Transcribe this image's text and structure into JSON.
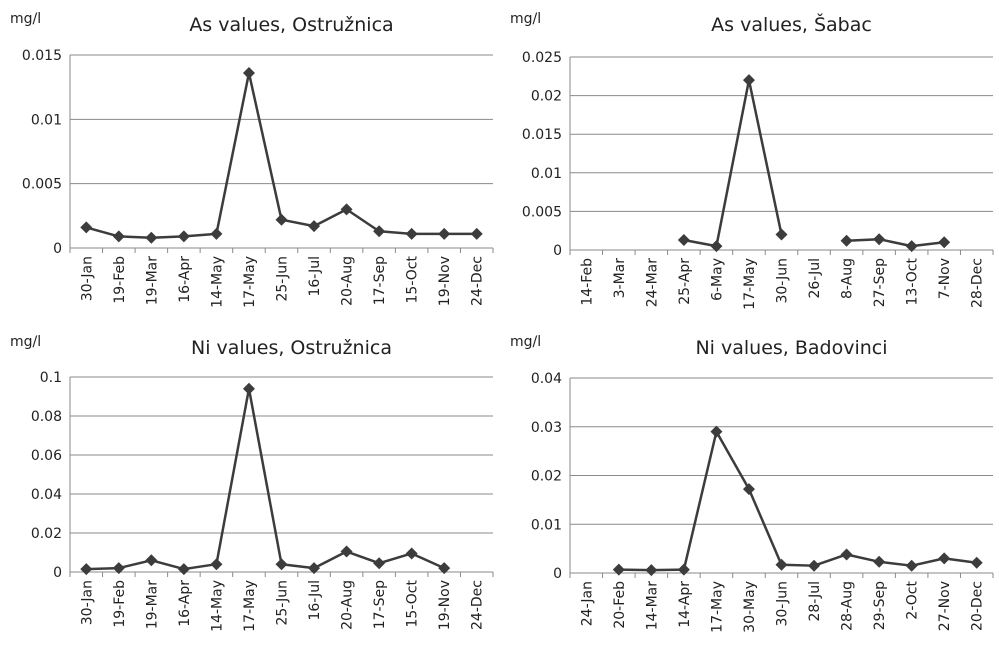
{
  "chart_data": [
    {
      "type": "line",
      "title": "As values, Ostružnica",
      "ylabel": "mg/l",
      "xlabel": "",
      "ylim": [
        0,
        0.015
      ],
      "yticks": [
        0,
        0.005,
        0.01,
        0.015
      ],
      "ytick_labels": [
        "0",
        "0.005",
        "0.01",
        "0.015"
      ],
      "categories": [
        "30-Jan",
        "19-Feb",
        "19-Mar",
        "16-Apr",
        "14-May",
        "17-May",
        "25-Jun",
        "16-Jul",
        "20-Aug",
        "17-Sep",
        "15-Oct",
        "19-Nov",
        "24-Dec"
      ],
      "values": [
        0.0016,
        0.0009,
        0.0008,
        0.0009,
        0.0011,
        0.0136,
        0.0022,
        0.0017,
        0.003,
        0.0013,
        0.0011,
        0.0011,
        0.0011
      ],
      "grid": true,
      "marker": "diamond"
    },
    {
      "type": "line",
      "title": "As values, Šabac",
      "ylabel": "mg/l",
      "xlabel": "",
      "ylim": [
        0,
        0.025
      ],
      "yticks": [
        0,
        0.005,
        0.01,
        0.015,
        0.02,
        0.025
      ],
      "ytick_labels": [
        "0",
        "0.005",
        "0.01",
        "0.015",
        "0.02",
        "0.025"
      ],
      "categories": [
        "14-Feb",
        "3-Mar",
        "24-Mar",
        "25-Apr",
        "6-May",
        "17-May",
        "30-Jun",
        "26-Jul",
        "8-Aug",
        "27-Sep",
        "13-Oct",
        "7-Nov",
        "28-Dec"
      ],
      "values": [
        null,
        null,
        null,
        0.0013,
        0.0005,
        0.022,
        0.002,
        null,
        0.0012,
        0.0014,
        0.0005,
        0.001,
        null
      ],
      "grid": true,
      "marker": "diamond"
    },
    {
      "type": "line",
      "title": "Ni values, Ostružnica",
      "ylabel": "mg/l",
      "xlabel": "",
      "ylim": [
        0,
        0.1
      ],
      "yticks": [
        0,
        0.02,
        0.04,
        0.06,
        0.08,
        0.1
      ],
      "ytick_labels": [
        "0",
        "0.02",
        "0.04",
        "0.06",
        "0.08",
        "0.1"
      ],
      "categories": [
        "30-Jan",
        "19-Feb",
        "19-Mar",
        "16-Apr",
        "14-May",
        "17-May",
        "25-Jun",
        "16-Jul",
        "20-Aug",
        "17-Sep",
        "15-Oct",
        "19-Nov",
        "24-Dec"
      ],
      "values": [
        0.0015,
        0.002,
        0.006,
        0.0015,
        0.004,
        0.094,
        0.004,
        0.002,
        0.0105,
        0.0045,
        0.0095,
        0.002,
        null
      ],
      "grid": true,
      "marker": "diamond"
    },
    {
      "type": "line",
      "title": "Ni values, Badovinci",
      "ylabel": "mg/l",
      "xlabel": "",
      "ylim": [
        0,
        0.04
      ],
      "yticks": [
        0,
        0.01,
        0.02,
        0.03,
        0.04
      ],
      "ytick_labels": [
        "0",
        "0.01",
        "0.02",
        "0.03",
        "0.04"
      ],
      "categories": [
        "24-Jan",
        "20-Feb",
        "14-Mar",
        "14-Apr",
        "17-May",
        "30-May",
        "30-Jun",
        "28-Jul",
        "28-Aug",
        "29-Sep",
        "2-Oct",
        "27-Nov",
        "20-Dec"
      ],
      "values": [
        null,
        0.0007,
        0.0006,
        0.0007,
        0.029,
        0.0172,
        0.0017,
        0.0015,
        0.0038,
        0.0023,
        0.0015,
        0.003,
        0.0021
      ],
      "grid": true,
      "marker": "diamond"
    }
  ]
}
